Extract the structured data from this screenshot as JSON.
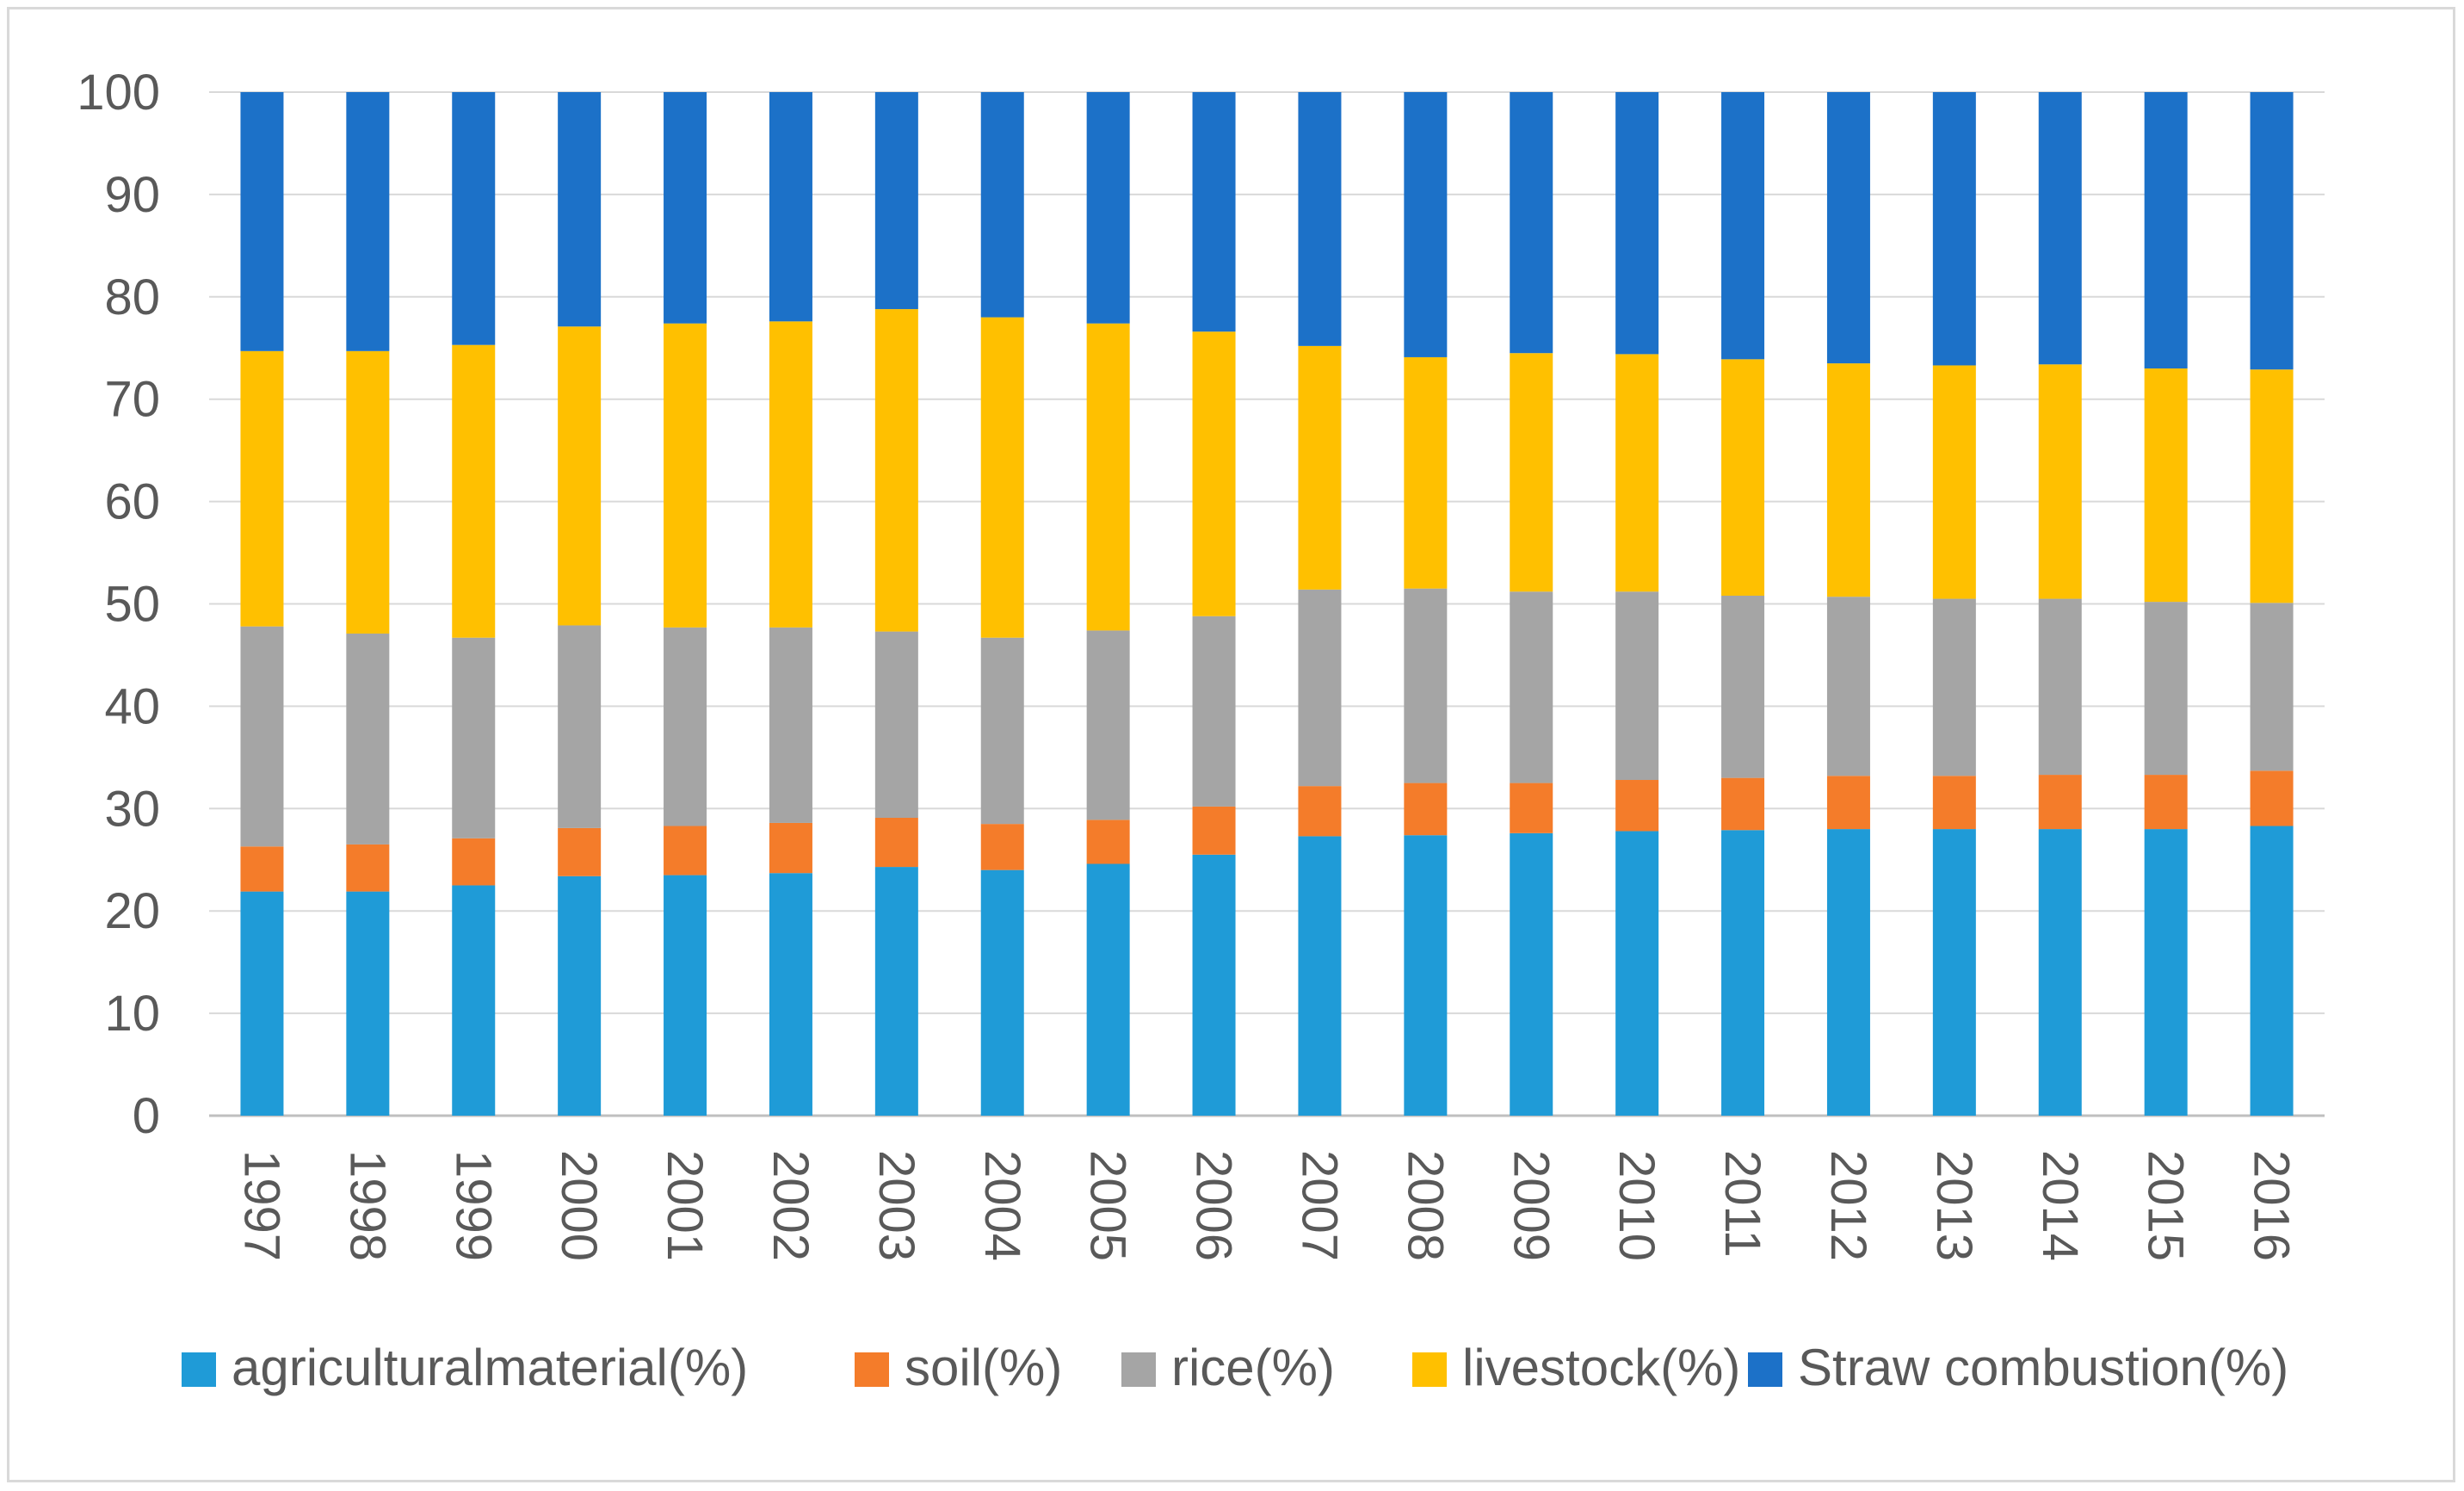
{
  "chart_data": {
    "type": "bar",
    "stacked": true,
    "title": "",
    "xlabel": "",
    "ylabel": "",
    "ylim": [
      0,
      100
    ],
    "yticks": [
      0,
      10,
      20,
      30,
      40,
      50,
      60,
      70,
      80,
      90,
      100
    ],
    "grid": true,
    "legend_position": "bottom",
    "categories": [
      "1997",
      "1998",
      "1999",
      "2000",
      "2001",
      "2002",
      "2003",
      "2004",
      "2005",
      "2006",
      "2007",
      "2008",
      "2009",
      "2010",
      "2011",
      "2012",
      "2013",
      "2014",
      "2015",
      "2016"
    ],
    "series": [
      {
        "name": "agriculturalmaterial(%)",
        "color": "#1f9bd7",
        "values": [
          21.9,
          21.9,
          22.5,
          23.4,
          23.5,
          23.7,
          24.3,
          24.0,
          24.6,
          25.5,
          27.3,
          27.4,
          27.6,
          27.8,
          27.9,
          28.0,
          28.0,
          28.0,
          28.0,
          28.3
        ]
      },
      {
        "name": "soil(%)",
        "color": "#f47c2a",
        "values": [
          4.4,
          4.6,
          4.6,
          4.7,
          4.8,
          4.9,
          4.8,
          4.5,
          4.3,
          4.7,
          4.9,
          5.1,
          4.9,
          5.0,
          5.1,
          5.2,
          5.2,
          5.3,
          5.3,
          5.4
        ]
      },
      {
        "name": "rice(%)",
        "color": "#a5a5a5",
        "values": [
          21.5,
          20.6,
          19.6,
          19.8,
          19.4,
          19.1,
          18.2,
          18.2,
          18.5,
          18.6,
          19.2,
          19.0,
          18.7,
          18.4,
          17.8,
          17.5,
          17.3,
          17.2,
          16.9,
          16.4
        ]
      },
      {
        "name": "livestock(%)",
        "color": "#ffc000",
        "values": [
          26.9,
          27.6,
          28.6,
          29.2,
          29.7,
          29.9,
          31.5,
          31.3,
          30.0,
          27.8,
          23.8,
          22.6,
          23.3,
          23.2,
          23.1,
          22.8,
          22.8,
          22.9,
          22.8,
          22.8
        ]
      },
      {
        "name": "Straw combustion(%)",
        "color": "#1c71c8",
        "values": [
          25.3,
          25.3,
          24.7,
          22.9,
          22.6,
          22.4,
          21.2,
          22.0,
          22.6,
          23.4,
          24.8,
          25.9,
          25.5,
          25.6,
          26.1,
          26.5,
          26.7,
          26.6,
          27.0,
          27.1
        ]
      }
    ]
  }
}
